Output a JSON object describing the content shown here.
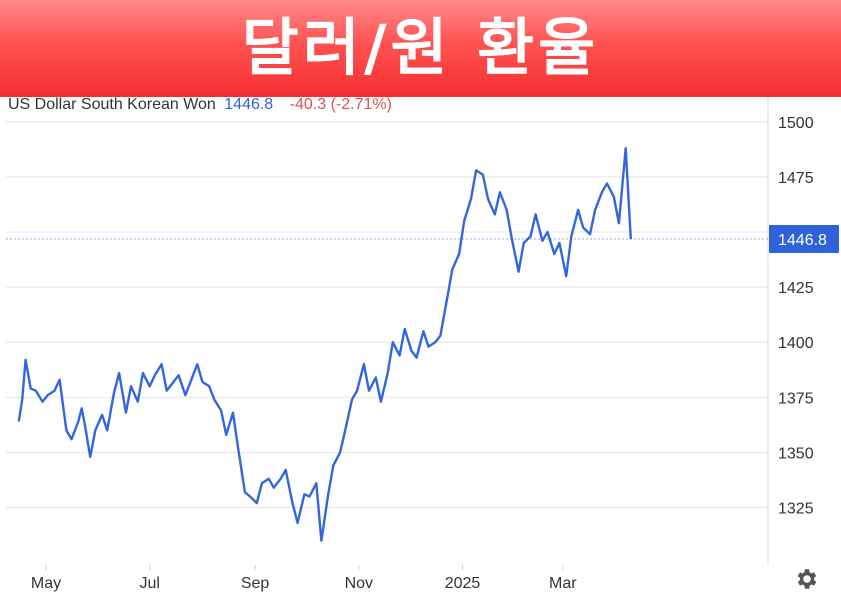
{
  "banner": {
    "title": "달러/원 환율"
  },
  "legend": {
    "name": "US Dollar South Korean Won",
    "last": "1446.8",
    "change": "-40.3 (-2.71%)"
  },
  "current_price_label": "1446.8",
  "colors": {
    "line": "#3366dd",
    "banner": "#ff5252",
    "change": "#d9534f",
    "label_bg": "#2f62d8"
  },
  "icons": {
    "settings": "gear-icon"
  },
  "chart_data": {
    "type": "line",
    "title": "",
    "xlabel": "",
    "ylabel": "",
    "ylim": [
      1300,
      1510
    ],
    "yticks": [
      1325,
      1350,
      1375,
      1400,
      1425,
      1450,
      1475,
      1500
    ],
    "ytick_labels": [
      "1325",
      "1350",
      "1375",
      "1400",
      "1425",
      "",
      "1475",
      "1500"
    ],
    "xticks": [
      {
        "label": "May",
        "date": "2024-05-01"
      },
      {
        "label": "Jul",
        "date": "2024-07-01"
      },
      {
        "label": "Sep",
        "date": "2024-09-01"
      },
      {
        "label": "Nov",
        "date": "2024-11-01"
      },
      {
        "label": "2025",
        "date": "2025-01-01"
      },
      {
        "label": "Mar",
        "date": "2025-03-01"
      }
    ],
    "grid": true,
    "reference_line": 1446.8,
    "series": [
      {
        "name": "US Dollar South Korean Won",
        "points": [
          [
            "2024-04-15",
            1364
          ],
          [
            "2024-04-17",
            1374
          ],
          [
            "2024-04-19",
            1392
          ],
          [
            "2024-04-22",
            1379
          ],
          [
            "2024-04-25",
            1378
          ],
          [
            "2024-04-29",
            1373
          ],
          [
            "2024-05-02",
            1376
          ],
          [
            "2024-05-06",
            1378
          ],
          [
            "2024-05-09",
            1383
          ],
          [
            "2024-05-13",
            1360
          ],
          [
            "2024-05-16",
            1356
          ],
          [
            "2024-05-20",
            1364
          ],
          [
            "2024-05-22",
            1370
          ],
          [
            "2024-05-24",
            1362
          ],
          [
            "2024-05-27",
            1348
          ],
          [
            "2024-05-30",
            1360
          ],
          [
            "2024-06-03",
            1367
          ],
          [
            "2024-06-06",
            1360
          ],
          [
            "2024-06-10",
            1377
          ],
          [
            "2024-06-13",
            1386
          ],
          [
            "2024-06-17",
            1368
          ],
          [
            "2024-06-20",
            1380
          ],
          [
            "2024-06-24",
            1373
          ],
          [
            "2024-06-27",
            1386
          ],
          [
            "2024-07-01",
            1380
          ],
          [
            "2024-07-04",
            1385
          ],
          [
            "2024-07-08",
            1390
          ],
          [
            "2024-07-11",
            1378
          ],
          [
            "2024-07-15",
            1382
          ],
          [
            "2024-07-18",
            1385
          ],
          [
            "2024-07-22",
            1376
          ],
          [
            "2024-07-25",
            1382
          ],
          [
            "2024-07-29",
            1390
          ],
          [
            "2024-08-01",
            1382
          ],
          [
            "2024-08-05",
            1380
          ],
          [
            "2024-08-08",
            1374
          ],
          [
            "2024-08-12",
            1369
          ],
          [
            "2024-08-15",
            1358
          ],
          [
            "2024-08-19",
            1368
          ],
          [
            "2024-08-22",
            1352
          ],
          [
            "2024-08-26",
            1332
          ],
          [
            "2024-08-29",
            1330
          ],
          [
            "2024-09-02",
            1327
          ],
          [
            "2024-09-05",
            1336
          ],
          [
            "2024-09-09",
            1338
          ],
          [
            "2024-09-12",
            1334
          ],
          [
            "2024-09-16",
            1338
          ],
          [
            "2024-09-19",
            1342
          ],
          [
            "2024-09-23",
            1327
          ],
          [
            "2024-09-26",
            1318
          ],
          [
            "2024-09-30",
            1331
          ],
          [
            "2024-10-03",
            1330
          ],
          [
            "2024-10-07",
            1336
          ],
          [
            "2024-10-10",
            1310
          ],
          [
            "2024-10-14",
            1331
          ],
          [
            "2024-10-17",
            1344
          ],
          [
            "2024-10-21",
            1350
          ],
          [
            "2024-10-24",
            1360
          ],
          [
            "2024-10-28",
            1374
          ],
          [
            "2024-10-31",
            1378
          ],
          [
            "2024-11-04",
            1390
          ],
          [
            "2024-11-07",
            1378
          ],
          [
            "2024-11-11",
            1384
          ],
          [
            "2024-11-14",
            1373
          ],
          [
            "2024-11-18",
            1386
          ],
          [
            "2024-11-21",
            1400
          ],
          [
            "2024-11-25",
            1394
          ],
          [
            "2024-11-28",
            1406
          ],
          [
            "2024-12-02",
            1396
          ],
          [
            "2024-12-05",
            1393
          ],
          [
            "2024-12-09",
            1405
          ],
          [
            "2024-12-12",
            1398
          ],
          [
            "2024-12-16",
            1400
          ],
          [
            "2024-12-19",
            1403
          ],
          [
            "2024-12-23",
            1420
          ],
          [
            "2024-12-26",
            1433
          ],
          [
            "2024-12-30",
            1440
          ],
          [
            "2025-01-02",
            1455
          ],
          [
            "2025-01-06",
            1465
          ],
          [
            "2025-01-09",
            1478
          ],
          [
            "2025-01-13",
            1476
          ],
          [
            "2025-01-16",
            1465
          ],
          [
            "2025-01-20",
            1458
          ],
          [
            "2025-01-23",
            1468
          ],
          [
            "2025-01-27",
            1460
          ],
          [
            "2025-01-30",
            1447
          ],
          [
            "2025-02-03",
            1432
          ],
          [
            "2025-02-06",
            1445
          ],
          [
            "2025-02-10",
            1448
          ],
          [
            "2025-02-13",
            1458
          ],
          [
            "2025-02-17",
            1446
          ],
          [
            "2025-02-20",
            1450
          ],
          [
            "2025-02-24",
            1440
          ],
          [
            "2025-02-27",
            1445
          ],
          [
            "2025-03-03",
            1430
          ],
          [
            "2025-03-06",
            1448
          ],
          [
            "2025-03-10",
            1460
          ],
          [
            "2025-03-13",
            1452
          ],
          [
            "2025-03-17",
            1449
          ],
          [
            "2025-03-20",
            1460
          ],
          [
            "2025-03-24",
            1468
          ],
          [
            "2025-03-27",
            1472
          ],
          [
            "2025-03-31",
            1466
          ],
          [
            "2025-04-03",
            1454
          ],
          [
            "2025-04-07",
            1488
          ],
          [
            "2025-04-10",
            1446.8
          ]
        ]
      }
    ]
  }
}
